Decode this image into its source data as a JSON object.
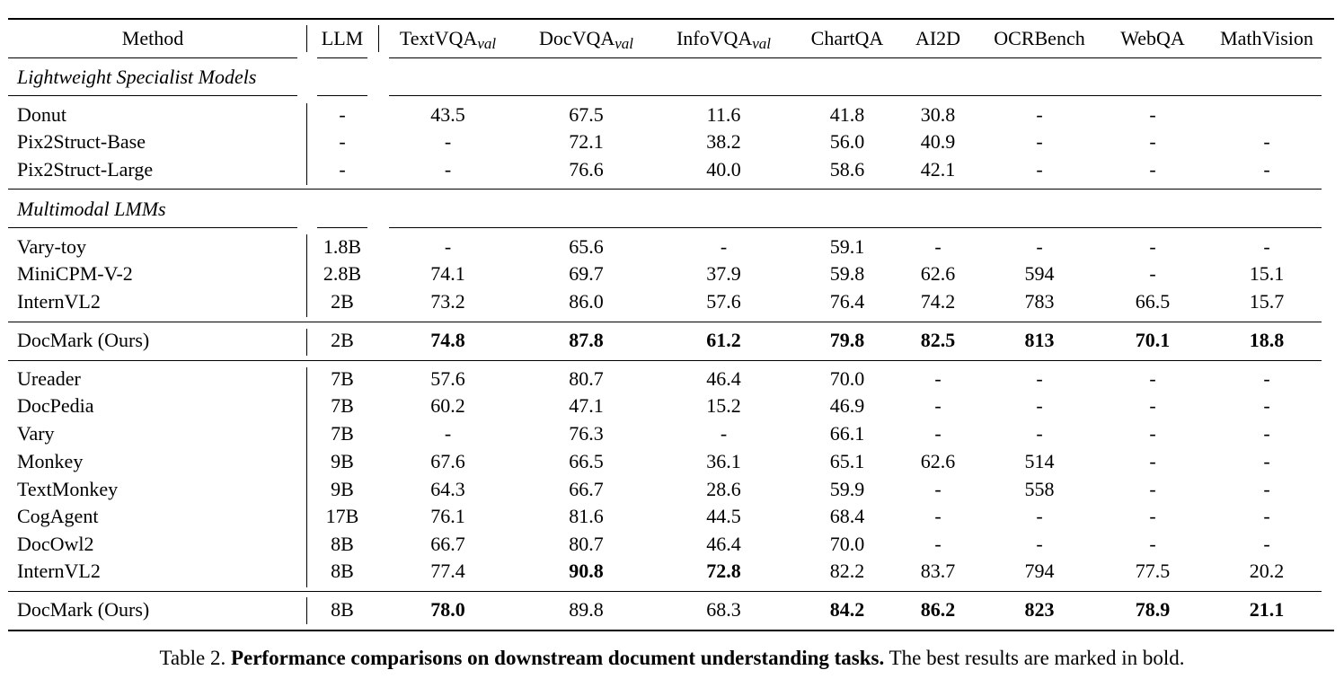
{
  "header": {
    "method": "Method",
    "llm": "LLM",
    "columns": [
      {
        "base": "TextVQA",
        "sub": "val"
      },
      {
        "base": "DocVQA",
        "sub": "val"
      },
      {
        "base": "InfoVQA",
        "sub": "val"
      },
      {
        "base": "ChartQA",
        "sub": ""
      },
      {
        "base": "AI2D",
        "sub": ""
      },
      {
        "base": "OCRBench",
        "sub": ""
      },
      {
        "base": "WebQA",
        "sub": ""
      },
      {
        "base": "MathVision",
        "sub": ""
      }
    ]
  },
  "sections": {
    "lightweight": "Lightweight Specialist Models",
    "multimodal": "Multimodal LMMs"
  },
  "rows": [
    {
      "method": "Donut",
      "llm": "-",
      "values": [
        "43.5",
        "67.5",
        "11.6",
        "41.8",
        "30.8",
        "-",
        "-",
        ""
      ],
      "bold": []
    },
    {
      "method": "Pix2Struct-Base",
      "llm": "-",
      "values": [
        "-",
        "72.1",
        "38.2",
        "56.0",
        "40.9",
        "-",
        "-",
        "-"
      ],
      "bold": []
    },
    {
      "method": "Pix2Struct-Large",
      "llm": "-",
      "values": [
        "-",
        "76.6",
        "40.0",
        "58.6",
        "42.1",
        "-",
        "-",
        "-"
      ],
      "bold": []
    },
    {
      "method": "Vary-toy",
      "llm": "1.8B",
      "values": [
        "-",
        "65.6",
        "-",
        "59.1",
        "-",
        "-",
        "-",
        "-"
      ],
      "bold": []
    },
    {
      "method": "MiniCPM-V-2",
      "llm": "2.8B",
      "values": [
        "74.1",
        "69.7",
        "37.9",
        "59.8",
        "62.6",
        "594",
        "-",
        "15.1"
      ],
      "bold": []
    },
    {
      "method": "InternVL2",
      "llm": "2B",
      "values": [
        "73.2",
        "86.0",
        "57.6",
        "76.4",
        "74.2",
        "783",
        "66.5",
        "15.7"
      ],
      "bold": []
    },
    {
      "method": "DocMark (Ours)",
      "llm": "2B",
      "values": [
        "74.8",
        "87.8",
        "61.2",
        "79.8",
        "82.5",
        "813",
        "70.1",
        "18.8"
      ],
      "bold": [
        0,
        1,
        2,
        3,
        4,
        5,
        6,
        7
      ]
    },
    {
      "method": "Ureader",
      "llm": "7B",
      "values": [
        "57.6",
        "80.7",
        "46.4",
        "70.0",
        "-",
        "-",
        "-",
        "-"
      ],
      "bold": []
    },
    {
      "method": "DocPedia",
      "llm": "7B",
      "values": [
        "60.2",
        "47.1",
        "15.2",
        "46.9",
        "-",
        "-",
        "-",
        "-"
      ],
      "bold": []
    },
    {
      "method": "Vary",
      "llm": "7B",
      "values": [
        "-",
        "76.3",
        "-",
        "66.1",
        "-",
        "-",
        "-",
        "-"
      ],
      "bold": []
    },
    {
      "method": "Monkey",
      "llm": "9B",
      "values": [
        "67.6",
        "66.5",
        "36.1",
        "65.1",
        "62.6",
        "514",
        "-",
        "-"
      ],
      "bold": []
    },
    {
      "method": "TextMonkey",
      "llm": "9B",
      "values": [
        "64.3",
        "66.7",
        "28.6",
        "59.9",
        "-",
        "558",
        "-",
        "-"
      ],
      "bold": []
    },
    {
      "method": "CogAgent",
      "llm": "17B",
      "values": [
        "76.1",
        "81.6",
        "44.5",
        "68.4",
        "-",
        "-",
        "-",
        "-"
      ],
      "bold": []
    },
    {
      "method": "DocOwl2",
      "llm": "8B",
      "values": [
        "66.7",
        "80.7",
        "46.4",
        "70.0",
        "-",
        "-",
        "-",
        "-"
      ],
      "bold": []
    },
    {
      "method": "InternVL2",
      "llm": "8B",
      "values": [
        "77.4",
        "90.8",
        "72.8",
        "82.2",
        "83.7",
        "794",
        "77.5",
        "20.2"
      ],
      "bold": [
        1,
        2
      ]
    },
    {
      "method": "DocMark (Ours)",
      "llm": "8B",
      "values": [
        "78.0",
        "89.8",
        "68.3",
        "84.2",
        "86.2",
        "823",
        "78.9",
        "21.1"
      ],
      "bold": [
        0,
        3,
        4,
        5,
        6,
        7
      ]
    }
  ],
  "caption": {
    "label": "Table 2.",
    "bold_text": "Performance comparisons on downstream document understanding tasks.",
    "rest": "The best results are marked in bold."
  }
}
